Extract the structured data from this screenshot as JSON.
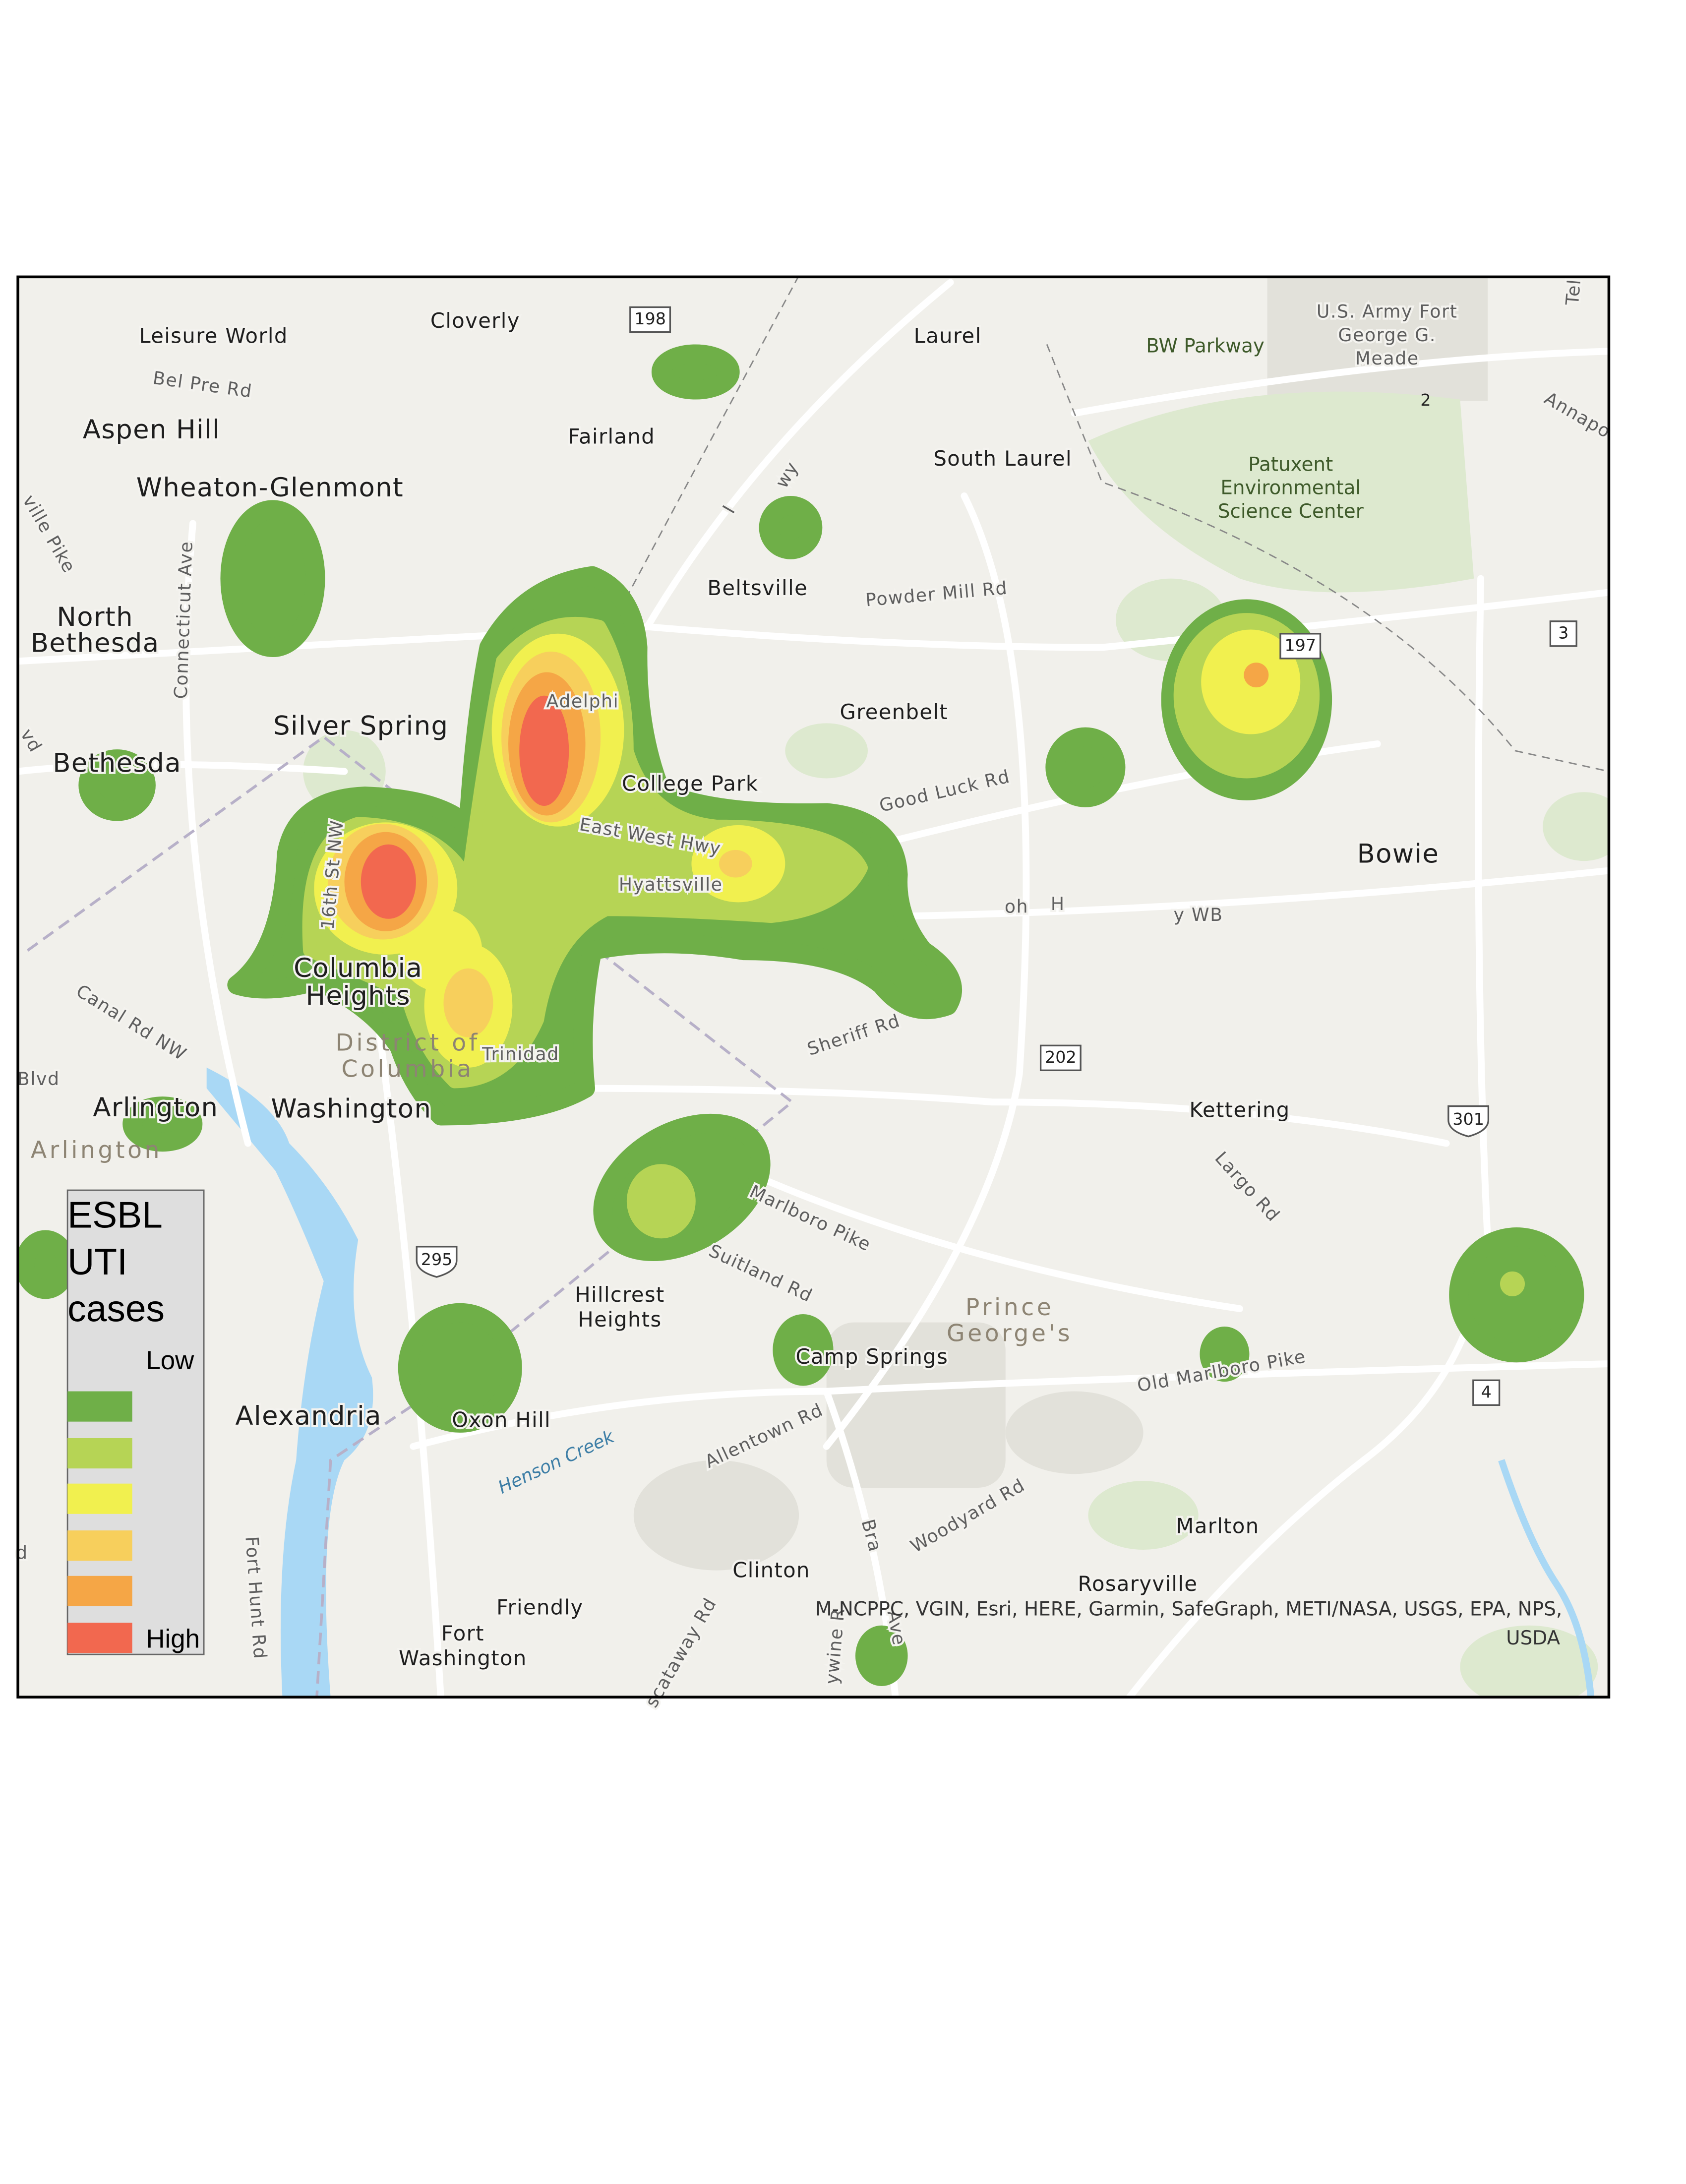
{
  "labels": [
    [
      "Leisure World"
    ],
    [
      "Cloverly"
    ],
    [
      "Laurel"
    ],
    [
      "BW Parkway"
    ],
    [
      "U.S. Army Fort",
      "George G.",
      "Meade"
    ],
    [
      "Bel Pre Rd"
    ],
    [
      "Aspen Hill"
    ],
    [
      "Fairland"
    ],
    [
      "South Laurel"
    ],
    [
      "Annapo"
    ],
    [
      "Wheaton-Glenmont"
    ],
    [
      "Patuxent",
      "Environmental",
      "Science Center"
    ],
    [
      "I"
    ],
    [
      "wy"
    ],
    [
      "Beltsville"
    ],
    [
      "Powder Mill Rd"
    ],
    [
      "North",
      "Bethesda"
    ],
    [
      "Connecticut Ave"
    ],
    [
      "Greenbelt"
    ],
    [
      "Adelphi"
    ],
    [
      "Silver Spring"
    ],
    [
      "Bethesda"
    ],
    [
      "College Park"
    ],
    [
      "Good Luck Rd"
    ],
    [
      "East West Hwy"
    ],
    [
      "16th St NW"
    ],
    [
      "Bowie"
    ],
    [
      "Hyattsville"
    ],
    [
      "oh"
    ],
    [
      "H"
    ],
    [
      "y WB"
    ],
    [
      "Columbia",
      "Heights"
    ],
    [
      "Canal Rd NW"
    ],
    [
      "District of",
      "Columbia"
    ],
    [
      "Trinidad"
    ],
    [
      "Sheriff Rd"
    ],
    [
      "Blvd"
    ],
    [
      "Arlington"
    ],
    [
      "Washington"
    ],
    [
      "Kettering"
    ],
    [
      "Arlington"
    ],
    [
      "Largo Rd"
    ],
    [
      "Marlboro Pike"
    ],
    [
      "Suitland Rd"
    ],
    [
      "Hillcrest",
      "Heights"
    ],
    [
      "Prince",
      "George's"
    ],
    [
      "Camp Springs"
    ],
    [
      "Old Marlboro Pike"
    ],
    [
      "Alexandria"
    ],
    [
      "Oxon Hill"
    ],
    [
      "Henson Creek"
    ],
    [
      "Allentown Rd"
    ],
    [
      "Woodyard Rd"
    ],
    [
      "Marlton"
    ],
    [
      "Fort Hunt Rd"
    ],
    [
      "Bra"
    ],
    [
      "Clinton"
    ],
    [
      "Rosaryville"
    ],
    [
      "Friendly"
    ],
    [
      "Fort",
      "Washington"
    ],
    [
      "scataway Rd"
    ],
    [
      "ywine R"
    ],
    [
      "Ave"
    ],
    [
      "Tel"
    ],
    [
      "ville Pike"
    ],
    [
      "vd"
    ],
    [
      "d"
    ]
  ],
  "shields": [
    "198",
    "197",
    "3",
    "2",
    "202",
    "301",
    "295",
    "4"
  ],
  "attribution": [
    "M-NCPPC, VGIN, Esri, HERE, Garmin, SafeGraph, METI/NASA, USGS, EPA, NPS,",
    "USDA"
  ],
  "legend": {
    "title": [
      "ESBL",
      "UTI",
      "cases"
    ],
    "low": "Low",
    "high": "High"
  }
}
